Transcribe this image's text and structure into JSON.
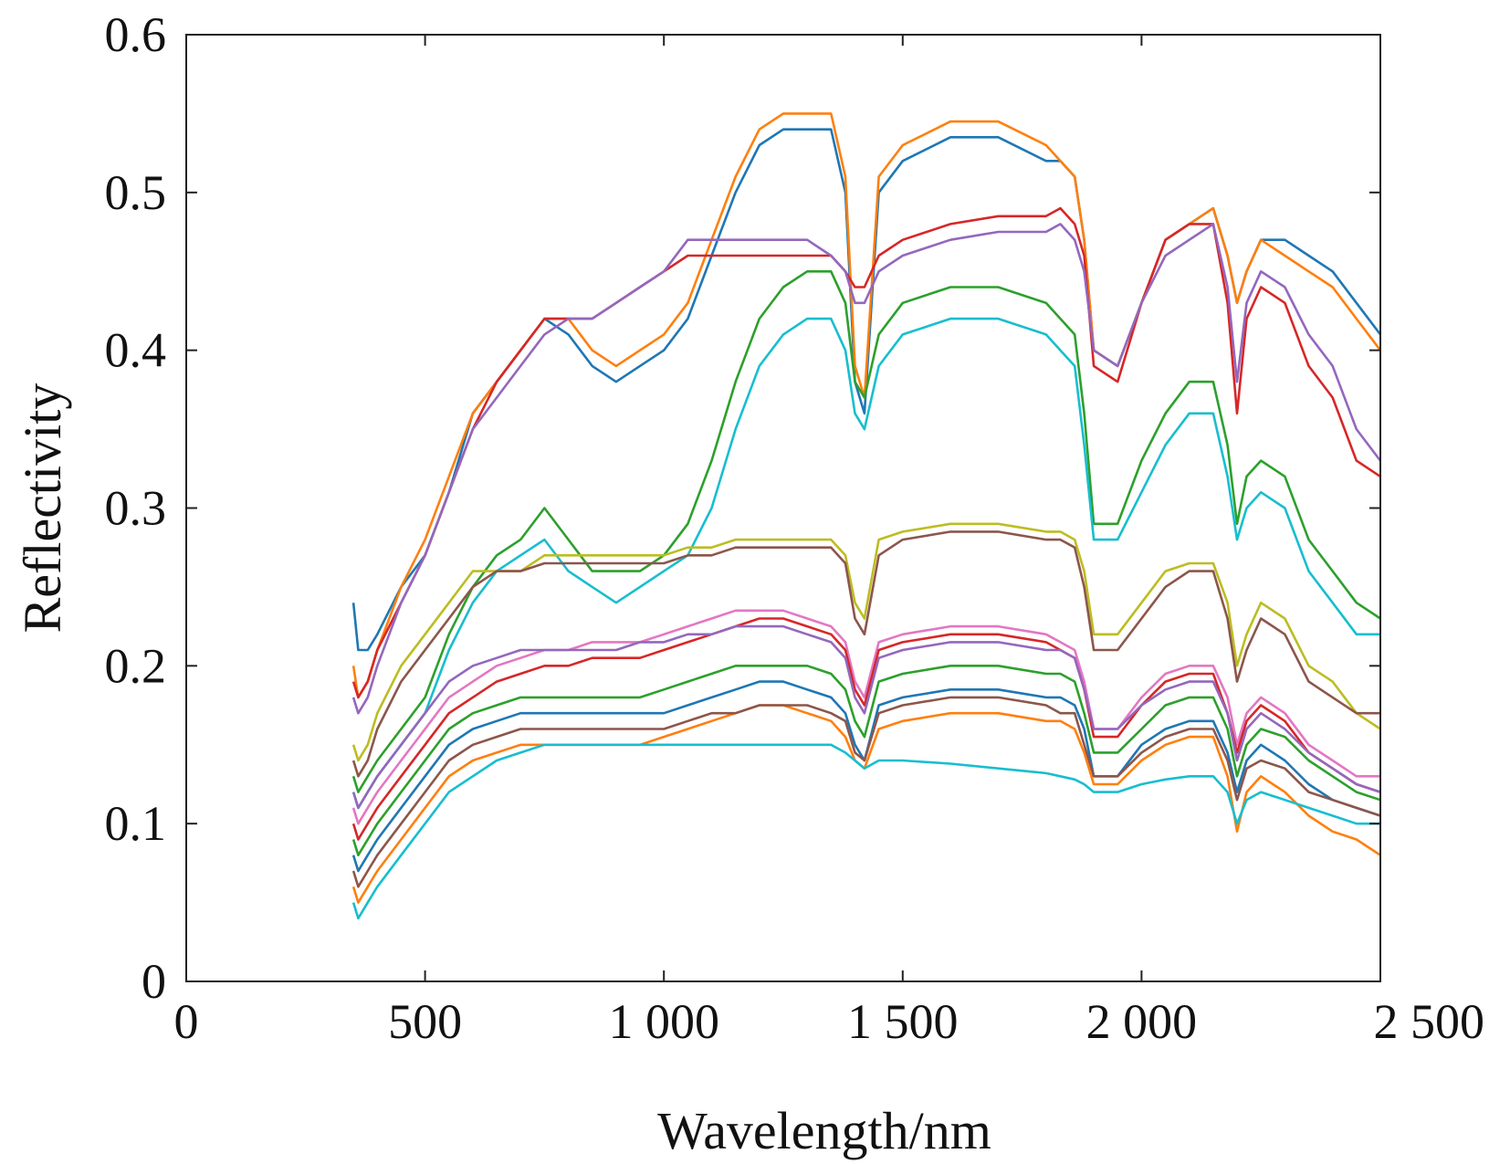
{
  "chart_data": {
    "type": "line",
    "title": "",
    "xlabel": "Wavelength/nm",
    "ylabel": "Reflectivity",
    "xlim": [
      0,
      2500
    ],
    "ylim": [
      0,
      0.6
    ],
    "xticks": [
      0,
      500,
      1000,
      1500,
      2000,
      2500
    ],
    "xtick_labels": [
      "0",
      "500",
      "1 000",
      "1 500",
      "2 000",
      "2 500"
    ],
    "yticks": [
      0,
      0.1,
      0.2,
      0.3,
      0.4,
      0.5,
      0.6
    ],
    "ytick_labels": [
      "0",
      "0.1",
      "0.2",
      "0.3",
      "0.4",
      "0.5",
      "0.6"
    ],
    "grid": false,
    "legend": "none",
    "x": [
      350,
      360,
      380,
      400,
      450,
      500,
      550,
      600,
      650,
      700,
      750,
      800,
      850,
      900,
      950,
      1000,
      1050,
      1100,
      1150,
      1200,
      1250,
      1300,
      1350,
      1380,
      1400,
      1420,
      1450,
      1500,
      1600,
      1700,
      1800,
      1830,
      1860,
      1880,
      1900,
      1950,
      2000,
      2050,
      2100,
      2150,
      2180,
      2200,
      2220,
      2250,
      2300,
      2350,
      2400,
      2450,
      2500
    ],
    "series": [
      {
        "color": "#1f77b4",
        "values": [
          0.24,
          0.21,
          0.21,
          0.22,
          0.25,
          0.27,
          0.31,
          0.36,
          0.38,
          0.4,
          0.42,
          0.41,
          0.39,
          0.38,
          0.39,
          0.4,
          0.42,
          0.46,
          0.5,
          0.53,
          0.54,
          0.54,
          0.54,
          0.5,
          0.38,
          0.36,
          0.5,
          0.52,
          0.535,
          0.535,
          0.52,
          0.52,
          0.51,
          0.47,
          0.4,
          0.39,
          0.43,
          0.47,
          0.48,
          0.49,
          0.46,
          0.43,
          0.45,
          0.47,
          0.47,
          0.46,
          0.45,
          0.43,
          0.41
        ]
      },
      {
        "color": "#ff7f0e",
        "values": [
          0.2,
          0.18,
          0.19,
          0.21,
          0.25,
          0.28,
          0.32,
          0.36,
          0.38,
          0.4,
          0.42,
          0.42,
          0.4,
          0.39,
          0.4,
          0.41,
          0.43,
          0.47,
          0.51,
          0.54,
          0.55,
          0.55,
          0.55,
          0.51,
          0.39,
          0.37,
          0.51,
          0.53,
          0.545,
          0.545,
          0.53,
          0.52,
          0.51,
          0.47,
          0.4,
          0.39,
          0.43,
          0.47,
          0.48,
          0.49,
          0.46,
          0.43,
          0.45,
          0.47,
          0.46,
          0.45,
          0.44,
          0.42,
          0.4
        ]
      },
      {
        "color": "#d62728",
        "values": [
          0.19,
          0.18,
          0.19,
          0.21,
          0.24,
          0.27,
          0.31,
          0.35,
          0.38,
          0.4,
          0.42,
          0.42,
          0.42,
          0.43,
          0.44,
          0.45,
          0.46,
          0.46,
          0.46,
          0.46,
          0.46,
          0.46,
          0.46,
          0.45,
          0.44,
          0.44,
          0.46,
          0.47,
          0.48,
          0.485,
          0.485,
          0.49,
          0.48,
          0.46,
          0.39,
          0.38,
          0.43,
          0.47,
          0.48,
          0.48,
          0.43,
          0.36,
          0.42,
          0.44,
          0.43,
          0.39,
          0.37,
          0.33,
          0.32
        ]
      },
      {
        "color": "#9467bd",
        "values": [
          0.18,
          0.17,
          0.18,
          0.2,
          0.24,
          0.27,
          0.31,
          0.35,
          0.37,
          0.39,
          0.41,
          0.42,
          0.42,
          0.43,
          0.44,
          0.45,
          0.47,
          0.47,
          0.47,
          0.47,
          0.47,
          0.47,
          0.46,
          0.45,
          0.43,
          0.43,
          0.45,
          0.46,
          0.47,
          0.475,
          0.475,
          0.48,
          0.47,
          0.45,
          0.4,
          0.39,
          0.43,
          0.46,
          0.47,
          0.48,
          0.44,
          0.38,
          0.43,
          0.45,
          0.44,
          0.41,
          0.39,
          0.35,
          0.33
        ]
      },
      {
        "color": "#2ca02c",
        "values": [
          0.13,
          0.12,
          0.13,
          0.14,
          0.16,
          0.18,
          0.22,
          0.25,
          0.27,
          0.28,
          0.3,
          0.28,
          0.26,
          0.26,
          0.26,
          0.27,
          0.29,
          0.33,
          0.38,
          0.42,
          0.44,
          0.45,
          0.45,
          0.43,
          0.38,
          0.37,
          0.41,
          0.43,
          0.44,
          0.44,
          0.43,
          0.42,
          0.41,
          0.36,
          0.29,
          0.29,
          0.33,
          0.36,
          0.38,
          0.38,
          0.34,
          0.29,
          0.32,
          0.33,
          0.32,
          0.28,
          0.26,
          0.24,
          0.23
        ]
      },
      {
        "color": "#17becf",
        "values": [
          0.12,
          0.11,
          0.12,
          0.13,
          0.15,
          0.17,
          0.21,
          0.24,
          0.26,
          0.27,
          0.28,
          0.26,
          0.25,
          0.24,
          0.25,
          0.26,
          0.27,
          0.3,
          0.35,
          0.39,
          0.41,
          0.42,
          0.42,
          0.4,
          0.36,
          0.35,
          0.39,
          0.41,
          0.42,
          0.42,
          0.41,
          0.4,
          0.39,
          0.34,
          0.28,
          0.28,
          0.31,
          0.34,
          0.36,
          0.36,
          0.32,
          0.28,
          0.3,
          0.31,
          0.3,
          0.26,
          0.24,
          0.22,
          0.22
        ]
      },
      {
        "color": "#bcbd22",
        "values": [
          0.15,
          0.14,
          0.15,
          0.17,
          0.2,
          0.22,
          0.24,
          0.26,
          0.26,
          0.26,
          0.27,
          0.27,
          0.27,
          0.27,
          0.27,
          0.27,
          0.275,
          0.275,
          0.28,
          0.28,
          0.28,
          0.28,
          0.28,
          0.27,
          0.24,
          0.23,
          0.28,
          0.285,
          0.29,
          0.29,
          0.285,
          0.285,
          0.28,
          0.26,
          0.22,
          0.22,
          0.24,
          0.26,
          0.265,
          0.265,
          0.24,
          0.2,
          0.22,
          0.24,
          0.23,
          0.2,
          0.19,
          0.17,
          0.16
        ]
      },
      {
        "color": "#8c564b",
        "values": [
          0.14,
          0.13,
          0.14,
          0.16,
          0.19,
          0.21,
          0.23,
          0.25,
          0.26,
          0.26,
          0.265,
          0.265,
          0.265,
          0.265,
          0.265,
          0.265,
          0.27,
          0.27,
          0.275,
          0.275,
          0.275,
          0.275,
          0.275,
          0.265,
          0.23,
          0.22,
          0.27,
          0.28,
          0.285,
          0.285,
          0.28,
          0.28,
          0.275,
          0.25,
          0.21,
          0.21,
          0.23,
          0.25,
          0.26,
          0.26,
          0.23,
          0.19,
          0.21,
          0.23,
          0.22,
          0.19,
          0.18,
          0.17,
          0.17
        ]
      },
      {
        "color": "#e377c2",
        "values": [
          0.11,
          0.1,
          0.11,
          0.12,
          0.14,
          0.16,
          0.18,
          0.19,
          0.2,
          0.205,
          0.21,
          0.21,
          0.215,
          0.215,
          0.215,
          0.22,
          0.225,
          0.23,
          0.235,
          0.235,
          0.235,
          0.23,
          0.225,
          0.215,
          0.19,
          0.18,
          0.215,
          0.22,
          0.225,
          0.225,
          0.22,
          0.215,
          0.21,
          0.19,
          0.16,
          0.16,
          0.18,
          0.195,
          0.2,
          0.2,
          0.18,
          0.15,
          0.17,
          0.18,
          0.17,
          0.15,
          0.14,
          0.13,
          0.13
        ]
      },
      {
        "color": "#d62728",
        "values": [
          0.1,
          0.09,
          0.1,
          0.11,
          0.13,
          0.15,
          0.17,
          0.18,
          0.19,
          0.195,
          0.2,
          0.2,
          0.205,
          0.205,
          0.205,
          0.21,
          0.215,
          0.22,
          0.225,
          0.23,
          0.23,
          0.225,
          0.22,
          0.21,
          0.185,
          0.175,
          0.21,
          0.215,
          0.22,
          0.22,
          0.215,
          0.21,
          0.205,
          0.185,
          0.155,
          0.155,
          0.175,
          0.19,
          0.195,
          0.195,
          0.17,
          0.145,
          0.165,
          0.175,
          0.165,
          0.145,
          0.135,
          0.125,
          0.12
        ]
      },
      {
        "color": "#1f77b4",
        "values": [
          0.08,
          0.07,
          0.08,
          0.09,
          0.11,
          0.13,
          0.15,
          0.16,
          0.165,
          0.17,
          0.17,
          0.17,
          0.17,
          0.17,
          0.17,
          0.17,
          0.175,
          0.18,
          0.185,
          0.19,
          0.19,
          0.185,
          0.18,
          0.17,
          0.15,
          0.14,
          0.175,
          0.18,
          0.185,
          0.185,
          0.18,
          0.18,
          0.175,
          0.16,
          0.13,
          0.13,
          0.15,
          0.16,
          0.165,
          0.165,
          0.145,
          0.12,
          0.14,
          0.15,
          0.14,
          0.125,
          0.115,
          0.11,
          0.105
        ]
      },
      {
        "color": "#ff7f0e",
        "values": [
          0.06,
          0.05,
          0.06,
          0.07,
          0.09,
          0.11,
          0.13,
          0.14,
          0.145,
          0.15,
          0.15,
          0.15,
          0.15,
          0.15,
          0.15,
          0.155,
          0.16,
          0.165,
          0.17,
          0.175,
          0.175,
          0.17,
          0.165,
          0.155,
          0.14,
          0.135,
          0.16,
          0.165,
          0.17,
          0.17,
          0.165,
          0.165,
          0.16,
          0.145,
          0.125,
          0.125,
          0.14,
          0.15,
          0.155,
          0.155,
          0.13,
          0.095,
          0.12,
          0.13,
          0.12,
          0.105,
          0.095,
          0.09,
          0.08
        ]
      },
      {
        "color": "#2ca02c",
        "values": [
          0.09,
          0.08,
          0.09,
          0.1,
          0.12,
          0.14,
          0.16,
          0.17,
          0.175,
          0.18,
          0.18,
          0.18,
          0.18,
          0.18,
          0.18,
          0.185,
          0.19,
          0.195,
          0.2,
          0.2,
          0.2,
          0.2,
          0.195,
          0.185,
          0.165,
          0.155,
          0.19,
          0.195,
          0.2,
          0.2,
          0.195,
          0.195,
          0.19,
          0.17,
          0.145,
          0.145,
          0.16,
          0.175,
          0.18,
          0.18,
          0.16,
          0.13,
          0.15,
          0.16,
          0.155,
          0.14,
          0.13,
          0.12,
          0.115
        ]
      },
      {
        "color": "#9467bd",
        "values": [
          0.12,
          0.11,
          0.12,
          0.13,
          0.15,
          0.17,
          0.19,
          0.2,
          0.205,
          0.21,
          0.21,
          0.21,
          0.21,
          0.21,
          0.215,
          0.215,
          0.22,
          0.22,
          0.225,
          0.225,
          0.225,
          0.22,
          0.215,
          0.205,
          0.18,
          0.17,
          0.205,
          0.21,
          0.215,
          0.215,
          0.21,
          0.21,
          0.205,
          0.185,
          0.16,
          0.16,
          0.175,
          0.185,
          0.19,
          0.19,
          0.17,
          0.14,
          0.16,
          0.17,
          0.16,
          0.145,
          0.135,
          0.125,
          0.12
        ]
      },
      {
        "color": "#17becf",
        "values": [
          0.05,
          0.04,
          0.05,
          0.06,
          0.08,
          0.1,
          0.12,
          0.13,
          0.14,
          0.145,
          0.15,
          0.15,
          0.15,
          0.15,
          0.15,
          0.15,
          0.15,
          0.15,
          0.15,
          0.15,
          0.15,
          0.15,
          0.15,
          0.145,
          0.14,
          0.135,
          0.14,
          0.14,
          0.138,
          0.135,
          0.132,
          0.13,
          0.128,
          0.125,
          0.12,
          0.12,
          0.125,
          0.128,
          0.13,
          0.13,
          0.12,
          0.1,
          0.115,
          0.12,
          0.115,
          0.11,
          0.105,
          0.1,
          0.1
        ]
      },
      {
        "color": "#8c564b",
        "values": [
          0.07,
          0.06,
          0.07,
          0.08,
          0.1,
          0.12,
          0.14,
          0.15,
          0.155,
          0.16,
          0.16,
          0.16,
          0.16,
          0.16,
          0.16,
          0.16,
          0.165,
          0.17,
          0.17,
          0.175,
          0.175,
          0.175,
          0.17,
          0.165,
          0.145,
          0.14,
          0.17,
          0.175,
          0.18,
          0.18,
          0.175,
          0.17,
          0.17,
          0.15,
          0.13,
          0.13,
          0.145,
          0.155,
          0.16,
          0.16,
          0.14,
          0.115,
          0.135,
          0.14,
          0.135,
          0.12,
          0.115,
          0.11,
          0.105
        ]
      }
    ]
  }
}
